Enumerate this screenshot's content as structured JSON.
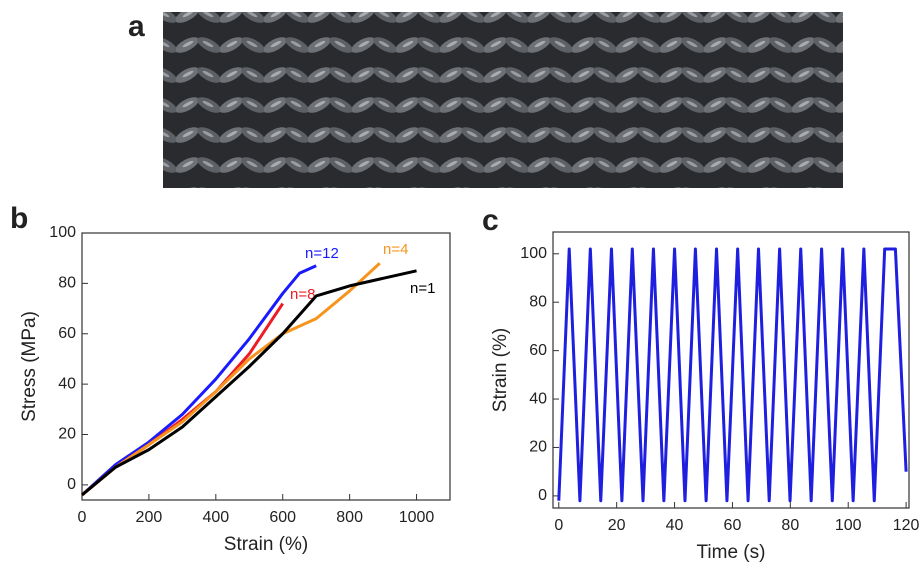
{
  "panel_labels": [
    "a",
    "b",
    "c"
  ],
  "chart_data": [
    {
      "type": "line",
      "xlabel": "Strain (%)",
      "ylabel": "Stress (MPa)",
      "xlim": [
        0,
        1100
      ],
      "xticks": [
        0,
        200,
        400,
        600,
        800,
        1000
      ],
      "ylim": [
        -6,
        100
      ],
      "yticks": [
        0,
        20,
        40,
        60,
        80,
        100
      ],
      "series": [
        {
          "name": "n=12",
          "color": "#1a1aff",
          "x": [
            0,
            100,
            200,
            300,
            400,
            500,
            600,
            650,
            700
          ],
          "values": [
            -4,
            8,
            17,
            28,
            42,
            58,
            76,
            84,
            87
          ]
        },
        {
          "name": "n=8",
          "color": "#ee1c25",
          "x": [
            0,
            100,
            200,
            300,
            400,
            500,
            600
          ],
          "values": [
            -4,
            7,
            16,
            26,
            37,
            52,
            72
          ]
        },
        {
          "name": "n=4",
          "color": "#f7941d",
          "x": [
            0,
            100,
            200,
            300,
            400,
            500,
            600,
            700,
            800,
            890
          ],
          "values": [
            -4,
            7,
            16,
            25,
            37,
            50,
            60,
            66,
            77,
            88
          ]
        },
        {
          "name": "n=1",
          "color": "#000000",
          "x": [
            0,
            100,
            200,
            300,
            400,
            500,
            600,
            700,
            800,
            900,
            1000
          ],
          "values": [
            -4,
            7,
            14,
            23,
            35,
            47,
            60,
            75,
            79,
            82,
            85
          ]
        }
      ]
    },
    {
      "type": "line",
      "xlabel": "Time (s)",
      "ylabel": "Strain (%)",
      "xlim": [
        -2,
        121
      ],
      "xticks": [
        0,
        20,
        40,
        60,
        80,
        100,
        120
      ],
      "ylim": [
        -5,
        109
      ],
      "yticks": [
        0,
        20,
        40,
        60,
        80,
        100
      ],
      "series": [
        {
          "color": "#1f1fe0",
          "x": [
            0,
            3.6,
            7.3,
            10.9,
            14.5,
            18.2,
            21.8,
            25.4,
            29.1,
            32.7,
            36.3,
            40,
            43.6,
            47.2,
            50.9,
            54.5,
            58.1,
            61.8,
            65.4,
            69,
            72.7,
            76.3,
            79.9,
            83.6,
            87.2,
            90.8,
            94.5,
            98.1,
            101.7,
            105.4,
            109,
            112.6,
            116.3,
            120
          ],
          "values": [
            -2,
            102,
            -2,
            102,
            -2,
            102,
            -2,
            102,
            -2,
            102,
            -2,
            102,
            -2,
            102,
            -2,
            102,
            -2,
            102,
            -2,
            102,
            -2,
            102,
            -2,
            102,
            -2,
            102,
            -2,
            102,
            -2,
            102,
            -2,
            102,
            102,
            10
          ]
        }
      ]
    }
  ]
}
